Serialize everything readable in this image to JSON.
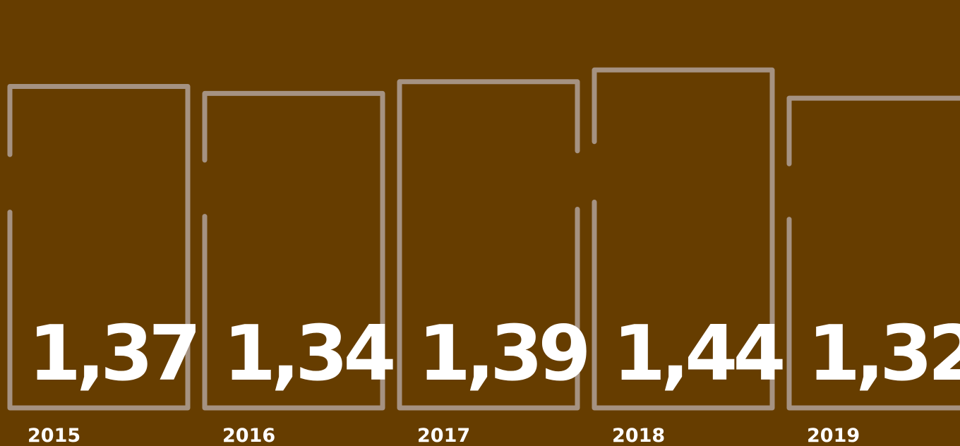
{
  "colors": {
    "background": "#663d00",
    "outline": "#a59282",
    "value_text": "#ffffff",
    "year_text": "#ffffff"
  },
  "chart_data": {
    "type": "bar",
    "title": "",
    "xlabel": "",
    "ylabel": "",
    "categories": [
      "2015",
      "2016",
      "2017",
      "2018",
      "2019"
    ],
    "values": [
      1.37,
      1.34,
      1.39,
      1.44,
      1.32
    ],
    "value_labels": [
      "1,37",
      "1,34",
      "1,39",
      "1,44",
      "1,32"
    ],
    "ylim": [
      0,
      1.63
    ],
    "grid": false,
    "legend": "none"
  }
}
